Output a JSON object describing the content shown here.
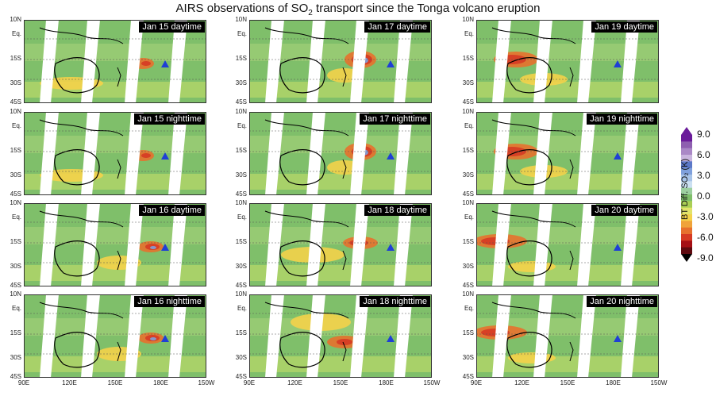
{
  "title": {
    "pre": "AIRS observations of SO",
    "sub": "2",
    "post": " transport since the Tonga volcano eruption"
  },
  "lat_labels": [
    "10N",
    "Eq.",
    "15S",
    "30S",
    "45S"
  ],
  "lon_labels": [
    "90E",
    "120E",
    "150E",
    "180E",
    "150W"
  ],
  "panels": [
    {
      "label": "Jan 15 daytime",
      "plume": "weak"
    },
    {
      "label": "Jan 17 daytime",
      "plume": "strong-center"
    },
    {
      "label": "Jan 19 daytime",
      "plume": "west"
    },
    {
      "label": "Jan 15 nighttime",
      "plume": "weak"
    },
    {
      "label": "Jan 17 nighttime",
      "plume": "strong-center"
    },
    {
      "label": "Jan 19 nighttime",
      "plume": "west"
    },
    {
      "label": "Jan 16 daytime",
      "plume": "east"
    },
    {
      "label": "Jan 18 daytime",
      "plume": "center"
    },
    {
      "label": "Jan 20 daytime",
      "plume": "far-west"
    },
    {
      "label": "Jan 16 nighttime",
      "plume": "east"
    },
    {
      "label": "Jan 18 nighttime",
      "plume": "center-weak"
    },
    {
      "label": "Jan 20 nighttime",
      "plume": "far-west"
    }
  ],
  "colorbar": {
    "label": "BT Diff. SO₂ (K)",
    "ticks": [
      "9.0",
      "6.0",
      "3.0",
      "0.0",
      "-3.0",
      "-6.0",
      "-9.0"
    ],
    "colors": [
      "#6a1b9a",
      "#8e5fb0",
      "#aa88c6",
      "#c9b5de",
      "#5b78c8",
      "#7fa0dc",
      "#a7c3e8",
      "#cbe0f2",
      "#9dcfa0",
      "#7fbf6a",
      "#aacf55",
      "#e2e36a",
      "#f4d24a",
      "#f0a33a",
      "#e7712e",
      "#d63a23",
      "#a50f15",
      "#5e0a10"
    ]
  },
  "volcano_color": "#1f3fd6"
}
